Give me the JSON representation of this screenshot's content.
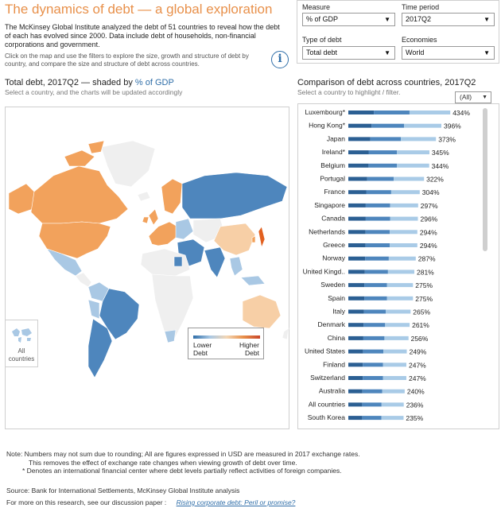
{
  "header": {
    "title": "The dynamics of debt — a global exploration",
    "intro": "The McKinsey Global Institute analyzed the debt of 51 countries to reveal how the debt of each has evolved since 2000. Data include debt of households, non-financial corporations and government.",
    "instructions": "Click on the map and use the filters to explore the size, growth and structure of debt by country, and compare the size and structure of debt across countries.",
    "info_icon": "info-icon",
    "info_glyph": "i"
  },
  "filters": {
    "measure": {
      "label": "Measure",
      "value": "% of GDP"
    },
    "time_period": {
      "label": "Time period",
      "value": "2017Q2"
    },
    "type_of_debt": {
      "label": "Type of debt",
      "value": "Total debt"
    },
    "economies": {
      "label": "Economies",
      "value": "World"
    }
  },
  "map": {
    "heading_prefix": "Total debt, 2017Q2 — shaded by",
    "heading_accent": "% of GDP",
    "subheading": "Select a country, and the charts will be updated accordingly",
    "all_countries_label": "All countries",
    "legend": {
      "low": "Lower Debt",
      "high": "Higher Debt"
    },
    "colors": {
      "low": "#2f6ea8",
      "mid_low": "#a9c8e4",
      "mid_high": "#f3d6b5",
      "high": "#e8904a"
    }
  },
  "comparison": {
    "heading": "Comparison of debt across countries, 2017Q2",
    "subheading": "Select a country to highlight / filter.",
    "filter_value": "(All)"
  },
  "chart_data": {
    "type": "bar",
    "orientation": "horizontal",
    "stacked": true,
    "categories": [
      "Luxembourg*",
      "Hong Kong*",
      "Japan",
      "Ireland*",
      "Belgium",
      "Portugal",
      "France",
      "Singapore",
      "Canada",
      "Netherlands",
      "Greece",
      "Norway",
      "United Kingd..",
      "Sweden",
      "Spain",
      "Italy",
      "Denmark",
      "China",
      "United States",
      "Finland",
      "Switzerland",
      "Australia",
      "All countries",
      "South Korea"
    ],
    "values": [
      434,
      396,
      373,
      345,
      344,
      322,
      304,
      297,
      296,
      294,
      294,
      287,
      281,
      275,
      275,
      265,
      261,
      256,
      249,
      247,
      247,
      240,
      236,
      235
    ],
    "value_labels": [
      "434%",
      "396%",
      "373%",
      "345%",
      "344%",
      "322%",
      "304%",
      "297%",
      "296%",
      "294%",
      "294%",
      "287%",
      "281%",
      "275%",
      "275%",
      "265%",
      "261%",
      "256%",
      "249%",
      "247%",
      "247%",
      "240%",
      "236%",
      "235%"
    ],
    "segment_colors": [
      "#2b5f93",
      "#4e86bd",
      "#a9cbe7"
    ],
    "xlim": [
      0,
      440
    ]
  },
  "footer": {
    "note_line1": "Note: Numbers may not sum due to rounding;   All are figures expressed in USD are measured in 2017 exchange rates.",
    "note_line2": "This removes the effect of exchange rate changes when viewing growth of debt over time.",
    "note_line3": "* Denotes an international financial center where debt levels partially reflect activities of foreign companies.",
    "source": "Source: Bank for International Settlements, McKinsey Global Institute analysis",
    "more_prefix": "For more on this research, see our discussion paper :",
    "more_link": "Rising corporate debt: Peril or promise?"
  }
}
